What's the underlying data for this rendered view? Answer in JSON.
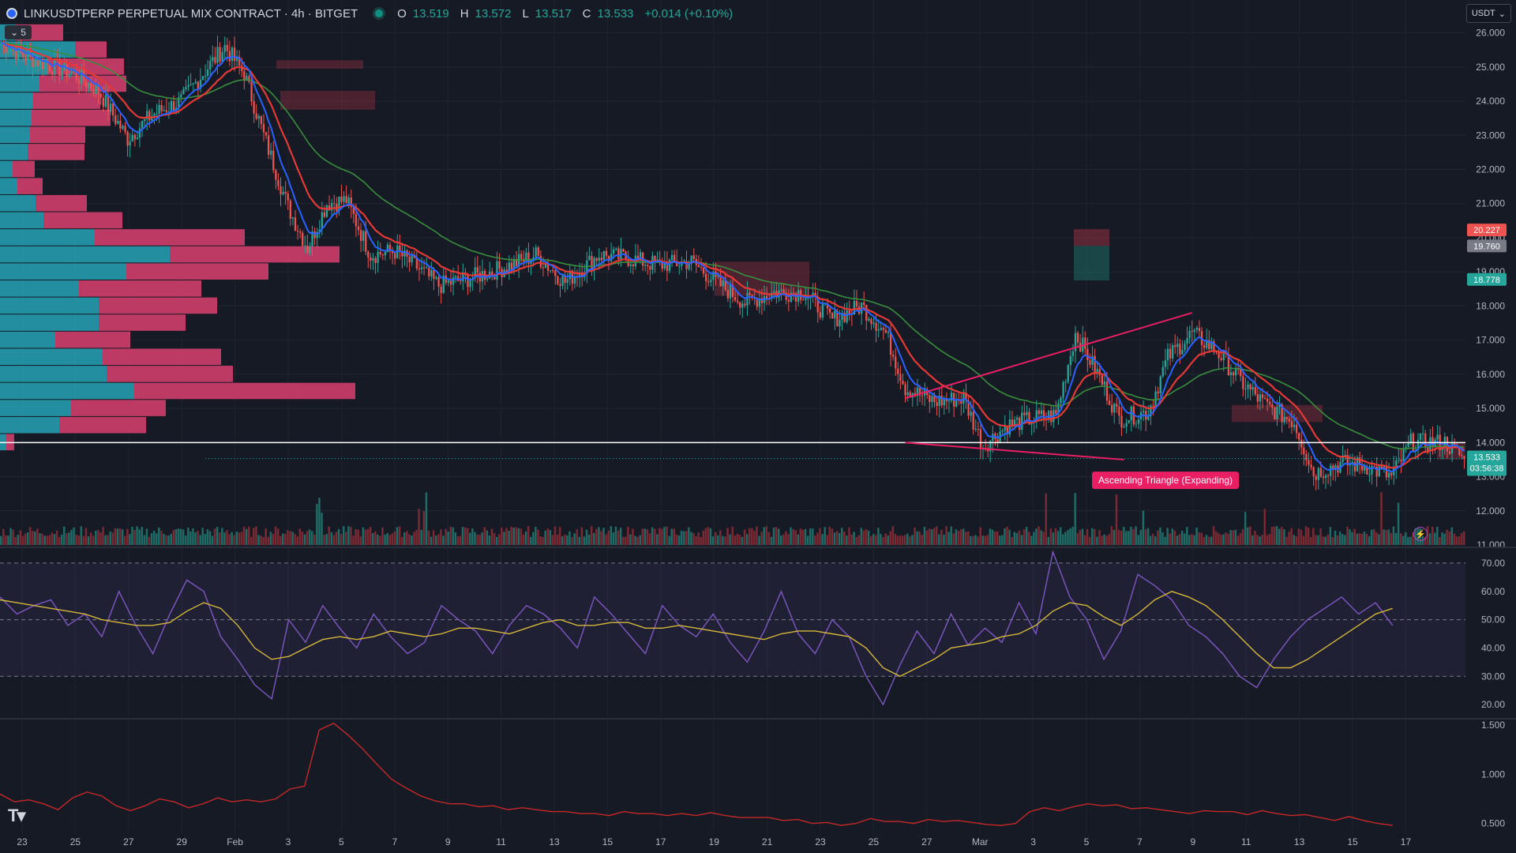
{
  "header": {
    "symbol": "LINKUSDTPERP PERPETUAL MIX CONTRACT · 4h · BITGET",
    "ohlc": [
      {
        "k": "O",
        "v": "13.519"
      },
      {
        "k": "H",
        "v": "13.572"
      },
      {
        "k": "L",
        "v": "13.517"
      },
      {
        "k": "C",
        "v": "13.533"
      }
    ],
    "change": "+0.014 (+0.10%)",
    "indicators_collapsed_count": "5",
    "currency": "USDT"
  },
  "colors": {
    "background": "#161a25",
    "up": "#26a69a",
    "down": "#ef5350",
    "ema_fast": "#2962ff",
    "ema_mid": "#e53935",
    "ema_slow": "#388e3c",
    "rsi": "#7e57c2",
    "rsi_ma": "#d4b63a",
    "pattern": "#e91e63",
    "vp_buy": "#26a3b5",
    "vp_sell": "#d9406e"
  },
  "chart_data": [
    {
      "type": "candlestick",
      "name": "price",
      "x_ticks": [
        "23",
        "25",
        "27",
        "29",
        "Feb",
        "3",
        "5",
        "7",
        "9",
        "11",
        "13",
        "15",
        "17",
        "19",
        "21",
        "23",
        "25",
        "27",
        "Mar",
        "3",
        "5",
        "7",
        "9",
        "11",
        "13",
        "15",
        "17"
      ],
      "y_ticks": [
        "26.000",
        "25.000",
        "24.000",
        "23.000",
        "22.000",
        "21.000",
        "20.000",
        "19.000",
        "18.000",
        "17.000",
        "16.000",
        "15.000",
        "14.000",
        "13.000",
        "12.000",
        "11.000"
      ],
      "ylim": [
        11,
        26.5
      ],
      "anchors": [
        [
          0,
          25.7
        ],
        [
          10,
          25.3
        ],
        [
          22,
          25.0
        ],
        [
          30,
          24.8
        ],
        [
          40,
          24.3
        ],
        [
          52,
          22.9
        ],
        [
          62,
          23.6
        ],
        [
          74,
          24.0
        ],
        [
          84,
          24.9
        ],
        [
          92,
          25.6
        ],
        [
          100,
          24.8
        ],
        [
          108,
          23.0
        ],
        [
          118,
          20.9
        ],
        [
          126,
          19.7
        ],
        [
          134,
          21.0
        ],
        [
          142,
          21.1
        ],
        [
          152,
          19.5
        ],
        [
          162,
          19.6
        ],
        [
          170,
          19.2
        ],
        [
          180,
          18.6
        ],
        [
          192,
          18.8
        ],
        [
          206,
          19.1
        ],
        [
          220,
          19.5
        ],
        [
          232,
          18.7
        ],
        [
          246,
          19.5
        ],
        [
          258,
          19.4
        ],
        [
          270,
          19.2
        ],
        [
          284,
          19.3
        ],
        [
          296,
          18.6
        ],
        [
          306,
          18.1
        ],
        [
          318,
          18.4
        ],
        [
          330,
          18.4
        ],
        [
          342,
          17.6
        ],
        [
          354,
          18.0
        ],
        [
          364,
          17.2
        ],
        [
          372,
          15.6
        ],
        [
          384,
          15.2
        ],
        [
          396,
          15.3
        ],
        [
          404,
          13.9
        ],
        [
          414,
          14.5
        ],
        [
          424,
          14.7
        ],
        [
          434,
          14.8
        ],
        [
          442,
          17.2
        ],
        [
          452,
          15.9
        ],
        [
          460,
          14.7
        ],
        [
          472,
          14.9
        ],
        [
          480,
          16.5
        ],
        [
          490,
          17.2
        ],
        [
          500,
          16.7
        ],
        [
          510,
          15.8
        ],
        [
          520,
          15.1
        ],
        [
          532,
          14.6
        ],
        [
          540,
          13.1
        ],
        [
          552,
          13.4
        ],
        [
          562,
          13.3
        ],
        [
          572,
          13.0
        ],
        [
          580,
          14.0
        ],
        [
          594,
          14.0
        ],
        [
          602,
          13.53
        ]
      ],
      "last_price": "13.533",
      "countdown": "03:56:38",
      "price_labels": [
        {
          "text": "20.227",
          "value": 20.227,
          "color": "#ef5350"
        },
        {
          "text": "19.760",
          "value": 19.76,
          "color": "#787b86"
        },
        {
          "text": "18.778",
          "value": 18.778,
          "color": "#26a69a"
        }
      ],
      "horizontal_line": 14.0,
      "pattern": {
        "label": "Ascending Triangle (Expanding)",
        "upper": [
          [
            372,
            15.3
          ],
          [
            490,
            17.8
          ]
        ],
        "lower": [
          [
            372,
            14.0
          ],
          [
            462,
            13.5
          ]
        ]
      },
      "volume_profile": [
        {
          "p": 26.0,
          "buy": 20,
          "sell": 60
        },
        {
          "p": 25.5,
          "buy": 95,
          "sell": 40
        },
        {
          "p": 25.0,
          "buy": 62,
          "sell": 95
        },
        {
          "p": 24.5,
          "buy": 50,
          "sell": 110
        },
        {
          "p": 24.0,
          "buy": 42,
          "sell": 85
        },
        {
          "p": 23.5,
          "buy": 40,
          "sell": 100
        },
        {
          "p": 23.0,
          "buy": 38,
          "sell": 70
        },
        {
          "p": 22.5,
          "buy": 35,
          "sell": 72
        },
        {
          "p": 22.0,
          "buy": 16,
          "sell": 28
        },
        {
          "p": 21.5,
          "buy": 22,
          "sell": 32
        },
        {
          "p": 21.0,
          "buy": 45,
          "sell": 65
        },
        {
          "p": 20.5,
          "buy": 55,
          "sell": 100
        },
        {
          "p": 20.0,
          "buy": 120,
          "sell": 190
        },
        {
          "p": 19.5,
          "buy": 215,
          "sell": 215
        },
        {
          "p": 19.0,
          "buy": 160,
          "sell": 180
        },
        {
          "p": 18.5,
          "buy": 100,
          "sell": 155
        },
        {
          "p": 18.0,
          "buy": 125,
          "sell": 150
        },
        {
          "p": 17.5,
          "buy": 125,
          "sell": 110
        },
        {
          "p": 17.0,
          "buy": 70,
          "sell": 95
        },
        {
          "p": 16.5,
          "buy": 130,
          "sell": 150
        },
        {
          "p": 16.0,
          "buy": 135,
          "sell": 160
        },
        {
          "p": 15.5,
          "buy": 170,
          "sell": 280
        },
        {
          "p": 15.0,
          "buy": 90,
          "sell": 120
        },
        {
          "p": 14.5,
          "buy": 75,
          "sell": 110
        },
        {
          "p": 14.0,
          "buy": 8,
          "sell": 10
        }
      ]
    },
    {
      "type": "line",
      "name": "RSI",
      "y_ticks": [
        "70.00",
        "60.00",
        "50.00",
        "40.00",
        "30.00",
        "20.00"
      ],
      "ylim": [
        15,
        75
      ],
      "levels": [
        70,
        50,
        30
      ],
      "series": [
        {
          "values": [
            58,
            52,
            55,
            57,
            48,
            52,
            44,
            60,
            48,
            38,
            52,
            64,
            60,
            44,
            36,
            27,
            22,
            50,
            42,
            55,
            47,
            40,
            52,
            44,
            38,
            42,
            55,
            50,
            46,
            38,
            48,
            55,
            52,
            47,
            40,
            58,
            52,
            45,
            38,
            55,
            48,
            44,
            52,
            42,
            35,
            46,
            60,
            45,
            38,
            50,
            44,
            30,
            20,
            34,
            46,
            38,
            52,
            41,
            47,
            42,
            56,
            45,
            74,
            58,
            50,
            36,
            46,
            66,
            62,
            57,
            48,
            44,
            38,
            30,
            26,
            36,
            44,
            50,
            54,
            58,
            52,
            56,
            48
          ]
        },
        {
          "values": [
            57,
            56,
            55,
            54,
            53,
            52,
            50,
            49,
            48,
            48,
            49,
            53,
            56,
            54,
            48,
            40,
            36,
            37,
            40,
            43,
            44,
            43,
            44,
            46,
            45,
            44,
            45,
            47,
            47,
            46,
            45,
            47,
            49,
            50,
            48,
            48,
            49,
            49,
            47,
            47,
            48,
            47,
            46,
            45,
            44,
            43,
            45,
            46,
            46,
            45,
            44,
            40,
            33,
            30,
            33,
            36,
            40,
            41,
            42,
            44,
            45,
            48,
            53,
            56,
            55,
            51,
            48,
            52,
            57,
            60,
            58,
            55,
            50,
            44,
            38,
            33,
            33,
            36,
            40,
            44,
            48,
            52,
            54
          ]
        }
      ]
    },
    {
      "type": "line",
      "name": "oscillator",
      "y_ticks": [
        "1.500",
        "1.000",
        "0.500"
      ],
      "ylim": [
        0.4,
        1.55
      ],
      "series": [
        {
          "values": [
            0.8,
            0.72,
            0.74,
            0.7,
            0.64,
            0.76,
            0.82,
            0.78,
            0.68,
            0.63,
            0.68,
            0.75,
            0.72,
            0.66,
            0.7,
            0.76,
            0.72,
            0.74,
            0.72,
            0.75,
            0.85,
            0.88,
            1.45,
            1.52,
            1.4,
            1.26,
            1.1,
            0.95,
            0.86,
            0.78,
            0.73,
            0.7,
            0.7,
            0.67,
            0.68,
            0.64,
            0.66,
            0.64,
            0.62,
            0.62,
            0.6,
            0.6,
            0.58,
            0.62,
            0.6,
            0.6,
            0.58,
            0.6,
            0.58,
            0.61,
            0.58,
            0.56,
            0.56,
            0.56,
            0.53,
            0.54,
            0.5,
            0.51,
            0.48,
            0.5,
            0.55,
            0.52,
            0.52,
            0.5,
            0.54,
            0.52,
            0.53,
            0.51,
            0.49,
            0.48,
            0.5,
            0.62,
            0.66,
            0.63,
            0.67,
            0.7,
            0.68,
            0.69,
            0.65,
            0.66,
            0.64,
            0.62,
            0.6,
            0.63,
            0.62,
            0.62,
            0.59,
            0.63,
            0.6,
            0.58,
            0.59,
            0.56,
            0.53,
            0.57,
            0.53,
            0.5,
            0.48
          ]
        }
      ]
    }
  ]
}
